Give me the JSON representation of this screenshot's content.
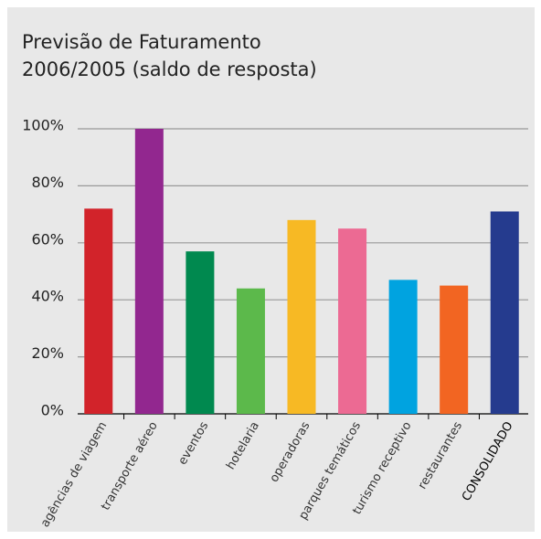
{
  "chart_data": {
    "type": "bar",
    "title": [
      "Previsão de Faturamento",
      "2006/2005 (saldo de resposta)"
    ],
    "categories": [
      "agências de viagem",
      "transporte aéreo",
      "eventos",
      "hotelaria",
      "operadoras",
      "parques temáticos",
      "turismo receptivo",
      "restaurantes",
      "CONSOLIDADO"
    ],
    "values": [
      72,
      100,
      57,
      44,
      68,
      65,
      47,
      45,
      71
    ],
    "colors": [
      "#d2232a",
      "#92278f",
      "#00894f",
      "#5cb94b",
      "#f7b924",
      "#ec6a93",
      "#00a3e0",
      "#f26522",
      "#253b8e"
    ],
    "ylim": [
      0,
      100
    ],
    "yticks": [
      {
        "value": 0,
        "label": "0%"
      },
      {
        "value": 20,
        "label": "20%"
      },
      {
        "value": 40,
        "label": "40%"
      },
      {
        "value": 60,
        "label": "60%"
      },
      {
        "value": 80,
        "label": "80%"
      },
      {
        "value": 100,
        "label": "100%"
      }
    ],
    "grid": true
  }
}
